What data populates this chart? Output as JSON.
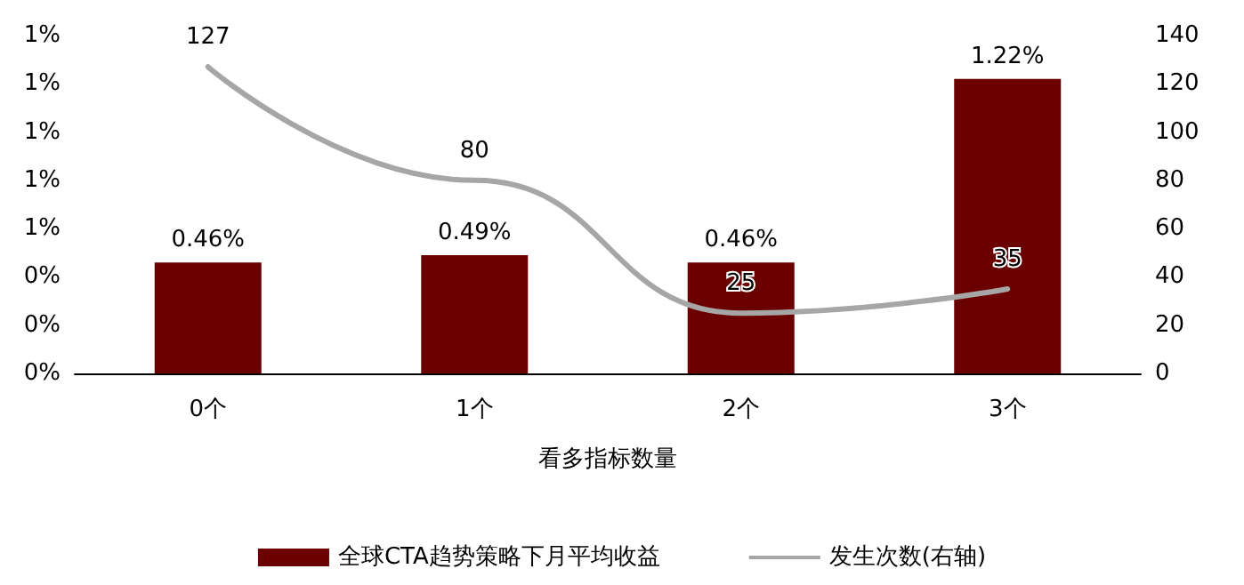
{
  "chart_data": {
    "type": "bar",
    "categories": [
      "0个",
      "1个",
      "2个",
      "3个"
    ],
    "xlabel": "看多指标数量",
    "series": [
      {
        "name": "全球CTA趋势策略下月平均收益",
        "color": "#6b0000",
        "values": [
          0.46,
          0.49,
          0.46,
          1.22
        ],
        "value_labels": [
          "0.46%",
          "0.49%",
          "0.46%",
          "1.22%"
        ]
      },
      {
        "name": "发生次数(右轴)",
        "type": "line",
        "axis": "y2",
        "color": "#a6a6a6",
        "values": [
          127,
          80,
          25,
          35
        ],
        "value_labels": [
          "127",
          "80",
          "25",
          "35"
        ]
      }
    ],
    "ylim": [
      0,
      1.4
    ],
    "yticks": [
      {
        "value": 0,
        "label": "0%"
      },
      {
        "value": 0.2,
        "label": "0%"
      },
      {
        "value": 0.4,
        "label": "0%"
      },
      {
        "value": 0.6,
        "label": "1%"
      },
      {
        "value": 0.8,
        "label": "1%"
      },
      {
        "value": 1.0,
        "label": "1%"
      },
      {
        "value": 1.2,
        "label": "1%"
      },
      {
        "value": 1.4,
        "label": "1%"
      }
    ],
    "y2lim": [
      0,
      140
    ],
    "y2ticks": [
      0,
      20,
      40,
      60,
      80,
      100,
      120,
      140
    ],
    "grid": false,
    "legend": "bottom",
    "marker": "none"
  }
}
